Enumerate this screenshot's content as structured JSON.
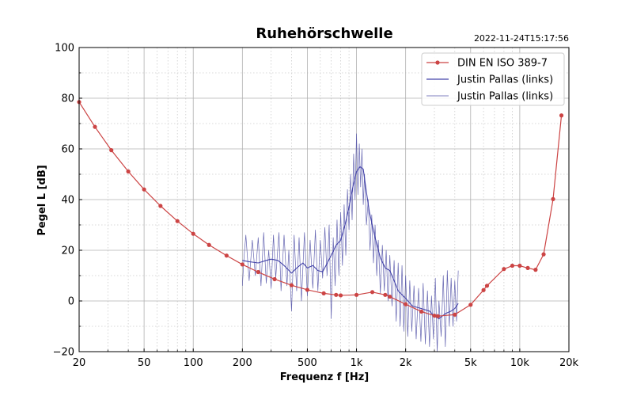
{
  "chart_data": {
    "type": "line",
    "title": "Ruhehörschwelle",
    "timestamp": "2022-11-24T15:17:56",
    "xlabel": "Frequenz f [Hz]",
    "ylabel": "Pegel L [dB]",
    "x_scale": "log",
    "xlim": [
      20,
      20000
    ],
    "ylim": [
      -20,
      100
    ],
    "x_ticks": [
      {
        "value": 20,
        "label": "20"
      },
      {
        "value": 50,
        "label": "50"
      },
      {
        "value": 100,
        "label": "100"
      },
      {
        "value": 200,
        "label": "200"
      },
      {
        "value": 500,
        "label": "500"
      },
      {
        "value": 1000,
        "label": "1k"
      },
      {
        "value": 2000,
        "label": "2k"
      },
      {
        "value": 5000,
        "label": "5k"
      },
      {
        "value": 10000,
        "label": "10k"
      },
      {
        "value": 20000,
        "label": "20k"
      }
    ],
    "y_ticks": [
      {
        "value": -20,
        "label": "−20"
      },
      {
        "value": 0,
        "label": "0"
      },
      {
        "value": 20,
        "label": "20"
      },
      {
        "value": 40,
        "label": "40"
      },
      {
        "value": 60,
        "label": "60"
      },
      {
        "value": 80,
        "label": "80"
      },
      {
        "value": 100,
        "label": "100"
      }
    ],
    "grid": true,
    "legend_position": "top-right",
    "series": [
      {
        "name": "DIN EN ISO 389-7",
        "color": "#cc4444",
        "style": "line-with-markers",
        "x": [
          20,
          25,
          31.5,
          40,
          50,
          63,
          80,
          100,
          125,
          160,
          200,
          250,
          315,
          400,
          500,
          630,
          750,
          800,
          1000,
          1250,
          1500,
          1600,
          2000,
          2500,
          3000,
          3150,
          4000,
          5000,
          6000,
          6300,
          8000,
          9000,
          10000,
          11200,
          12500,
          14000,
          16000,
          18000
        ],
        "y": [
          78.5,
          68.7,
          59.5,
          51.1,
          44.0,
          37.5,
          31.5,
          26.5,
          22.1,
          17.9,
          14.4,
          11.4,
          8.6,
          6.2,
          4.4,
          3.0,
          2.4,
          2.2,
          2.4,
          3.5,
          2.4,
          1.7,
          -1.3,
          -4.2,
          -5.8,
          -6.0,
          -5.4,
          -1.5,
          4.3,
          6.0,
          12.6,
          13.9,
          13.9,
          13.0,
          12.3,
          18.4,
          40.2,
          73.2
        ]
      },
      {
        "name": "Justin Pallas (links)",
        "color": "#4444aa",
        "style": "line",
        "x": [
          200,
          220,
          250,
          280,
          300,
          330,
          360,
          400,
          430,
          470,
          500,
          540,
          580,
          620,
          650,
          700,
          750,
          800,
          850,
          900,
          950,
          1000,
          1050,
          1100,
          1150,
          1200,
          1300,
          1400,
          1500,
          1600,
          1700,
          1800,
          2000,
          2200,
          2500,
          2800,
          3000,
          3200,
          3500,
          3800,
          4000,
          4200
        ],
        "y": [
          16,
          15.5,
          15,
          16,
          16.5,
          16,
          14,
          11,
          13,
          15,
          13,
          14,
          12,
          11.5,
          14,
          18,
          22,
          24,
          30,
          37,
          45,
          51,
          53,
          52,
          43,
          35,
          25,
          17,
          13,
          12,
          8,
          4,
          1,
          -2,
          -3,
          -4,
          -6,
          -7,
          -5,
          -4,
          -3,
          -1
        ]
      },
      {
        "name": "Justin Pallas (links)",
        "color": "#5555aa",
        "style": "thin-line",
        "x": [
          200,
          205,
          210,
          220,
          230,
          240,
          250,
          260,
          270,
          280,
          290,
          300,
          310,
          320,
          335,
          345,
          360,
          375,
          385,
          400,
          415,
          430,
          445,
          460,
          480,
          500,
          520,
          540,
          560,
          580,
          600,
          620,
          640,
          660,
          680,
          700,
          720,
          740,
          760,
          780,
          800,
          820,
          840,
          860,
          880,
          900,
          920,
          940,
          960,
          980,
          1000,
          1020,
          1040,
          1060,
          1080,
          1100,
          1120,
          1150,
          1180,
          1210,
          1240,
          1270,
          1300,
          1330,
          1360,
          1400,
          1440,
          1480,
          1520,
          1560,
          1600,
          1650,
          1700,
          1750,
          1800,
          1850,
          1900,
          1950,
          2000,
          2060,
          2120,
          2180,
          2250,
          2320,
          2400,
          2480,
          2560,
          2640,
          2720,
          2800,
          2880,
          2960,
          3040,
          3120,
          3200,
          3300,
          3400,
          3500,
          3600,
          3700,
          3800,
          3900,
          4000,
          4100,
          4200
        ],
        "y": [
          6,
          18,
          26,
          8,
          24,
          10,
          25,
          6,
          27,
          7,
          20,
          5,
          26,
          9,
          27,
          4,
          26,
          6,
          20,
          -4,
          26,
          4,
          25,
          0,
          27,
          2,
          24,
          5,
          28,
          4,
          24,
          9,
          29,
          10,
          30,
          -7,
          25,
          6,
          32,
          10,
          35,
          14,
          38,
          18,
          44,
          28,
          50,
          32,
          58,
          40,
          66,
          42,
          62,
          45,
          60,
          38,
          50,
          30,
          40,
          20,
          34,
          15,
          30,
          10,
          24,
          3,
          22,
          4,
          20,
          0,
          18,
          -2,
          16,
          -8,
          15,
          -10,
          14,
          -12,
          10,
          -14,
          8,
          -12,
          6,
          -15,
          5,
          -16,
          7,
          -17,
          4,
          -18,
          2,
          -15,
          9,
          -20,
          0,
          -14,
          10,
          -18,
          12,
          -10,
          9,
          -10,
          8,
          -8,
          12
        ]
      }
    ]
  }
}
